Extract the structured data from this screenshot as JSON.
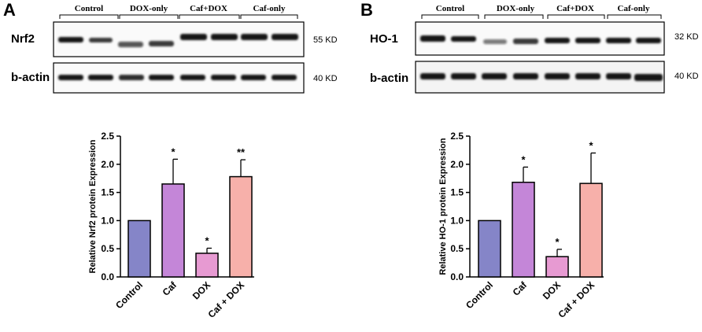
{
  "panels": [
    {
      "letter": "A",
      "blots": [
        {
          "protein": "Nrf2",
          "kd": "55 KD"
        },
        {
          "protein": "b-actin",
          "kd": "40 KD"
        }
      ],
      "groups": [
        "Control",
        "DOX-only",
        "Caf+DOX",
        "Caf-only"
      ]
    },
    {
      "letter": "B",
      "blots": [
        {
          "protein": "HO-1",
          "kd": "32 KD"
        },
        {
          "protein": "b-actin",
          "kd": "40 KD"
        }
      ],
      "groups": [
        "Control",
        "DOX-only",
        "Caf+DOX",
        "Caf-only"
      ]
    }
  ],
  "chart_data": [
    {
      "type": "bar",
      "ylabel": "Relative Nrf2 protein Expression",
      "ylim": [
        0,
        2.5
      ],
      "yticks": [
        "0.0",
        "0.5",
        "1.0",
        "1.5",
        "2.0",
        "2.5"
      ],
      "categories": [
        "Control",
        "Caf",
        "DOX",
        "Caf + DOX"
      ],
      "values": [
        1.0,
        1.65,
        0.42,
        1.78
      ],
      "errors": [
        0,
        0.44,
        0.09,
        0.3
      ],
      "annotations": [
        "",
        "*",
        "*",
        "**"
      ],
      "colors": [
        "#8585c8",
        "#c486d8",
        "#e79ad2",
        "#f7b0aa"
      ]
    },
    {
      "type": "bar",
      "ylabel": "Relative HO-1 protein Expression",
      "ylim": [
        0,
        2.5
      ],
      "yticks": [
        "0.0",
        "0.5",
        "1.0",
        "1.5",
        "2.0",
        "2.5"
      ],
      "categories": [
        "Control",
        "Caf",
        "DOX",
        "Caf + DOX"
      ],
      "values": [
        1.0,
        1.68,
        0.36,
        1.66
      ],
      "errors": [
        0,
        0.27,
        0.13,
        0.54
      ],
      "annotations": [
        "",
        "*",
        "*",
        "*"
      ],
      "colors": [
        "#8585c8",
        "#c486d8",
        "#e79ad2",
        "#f7b0aa"
      ]
    }
  ]
}
